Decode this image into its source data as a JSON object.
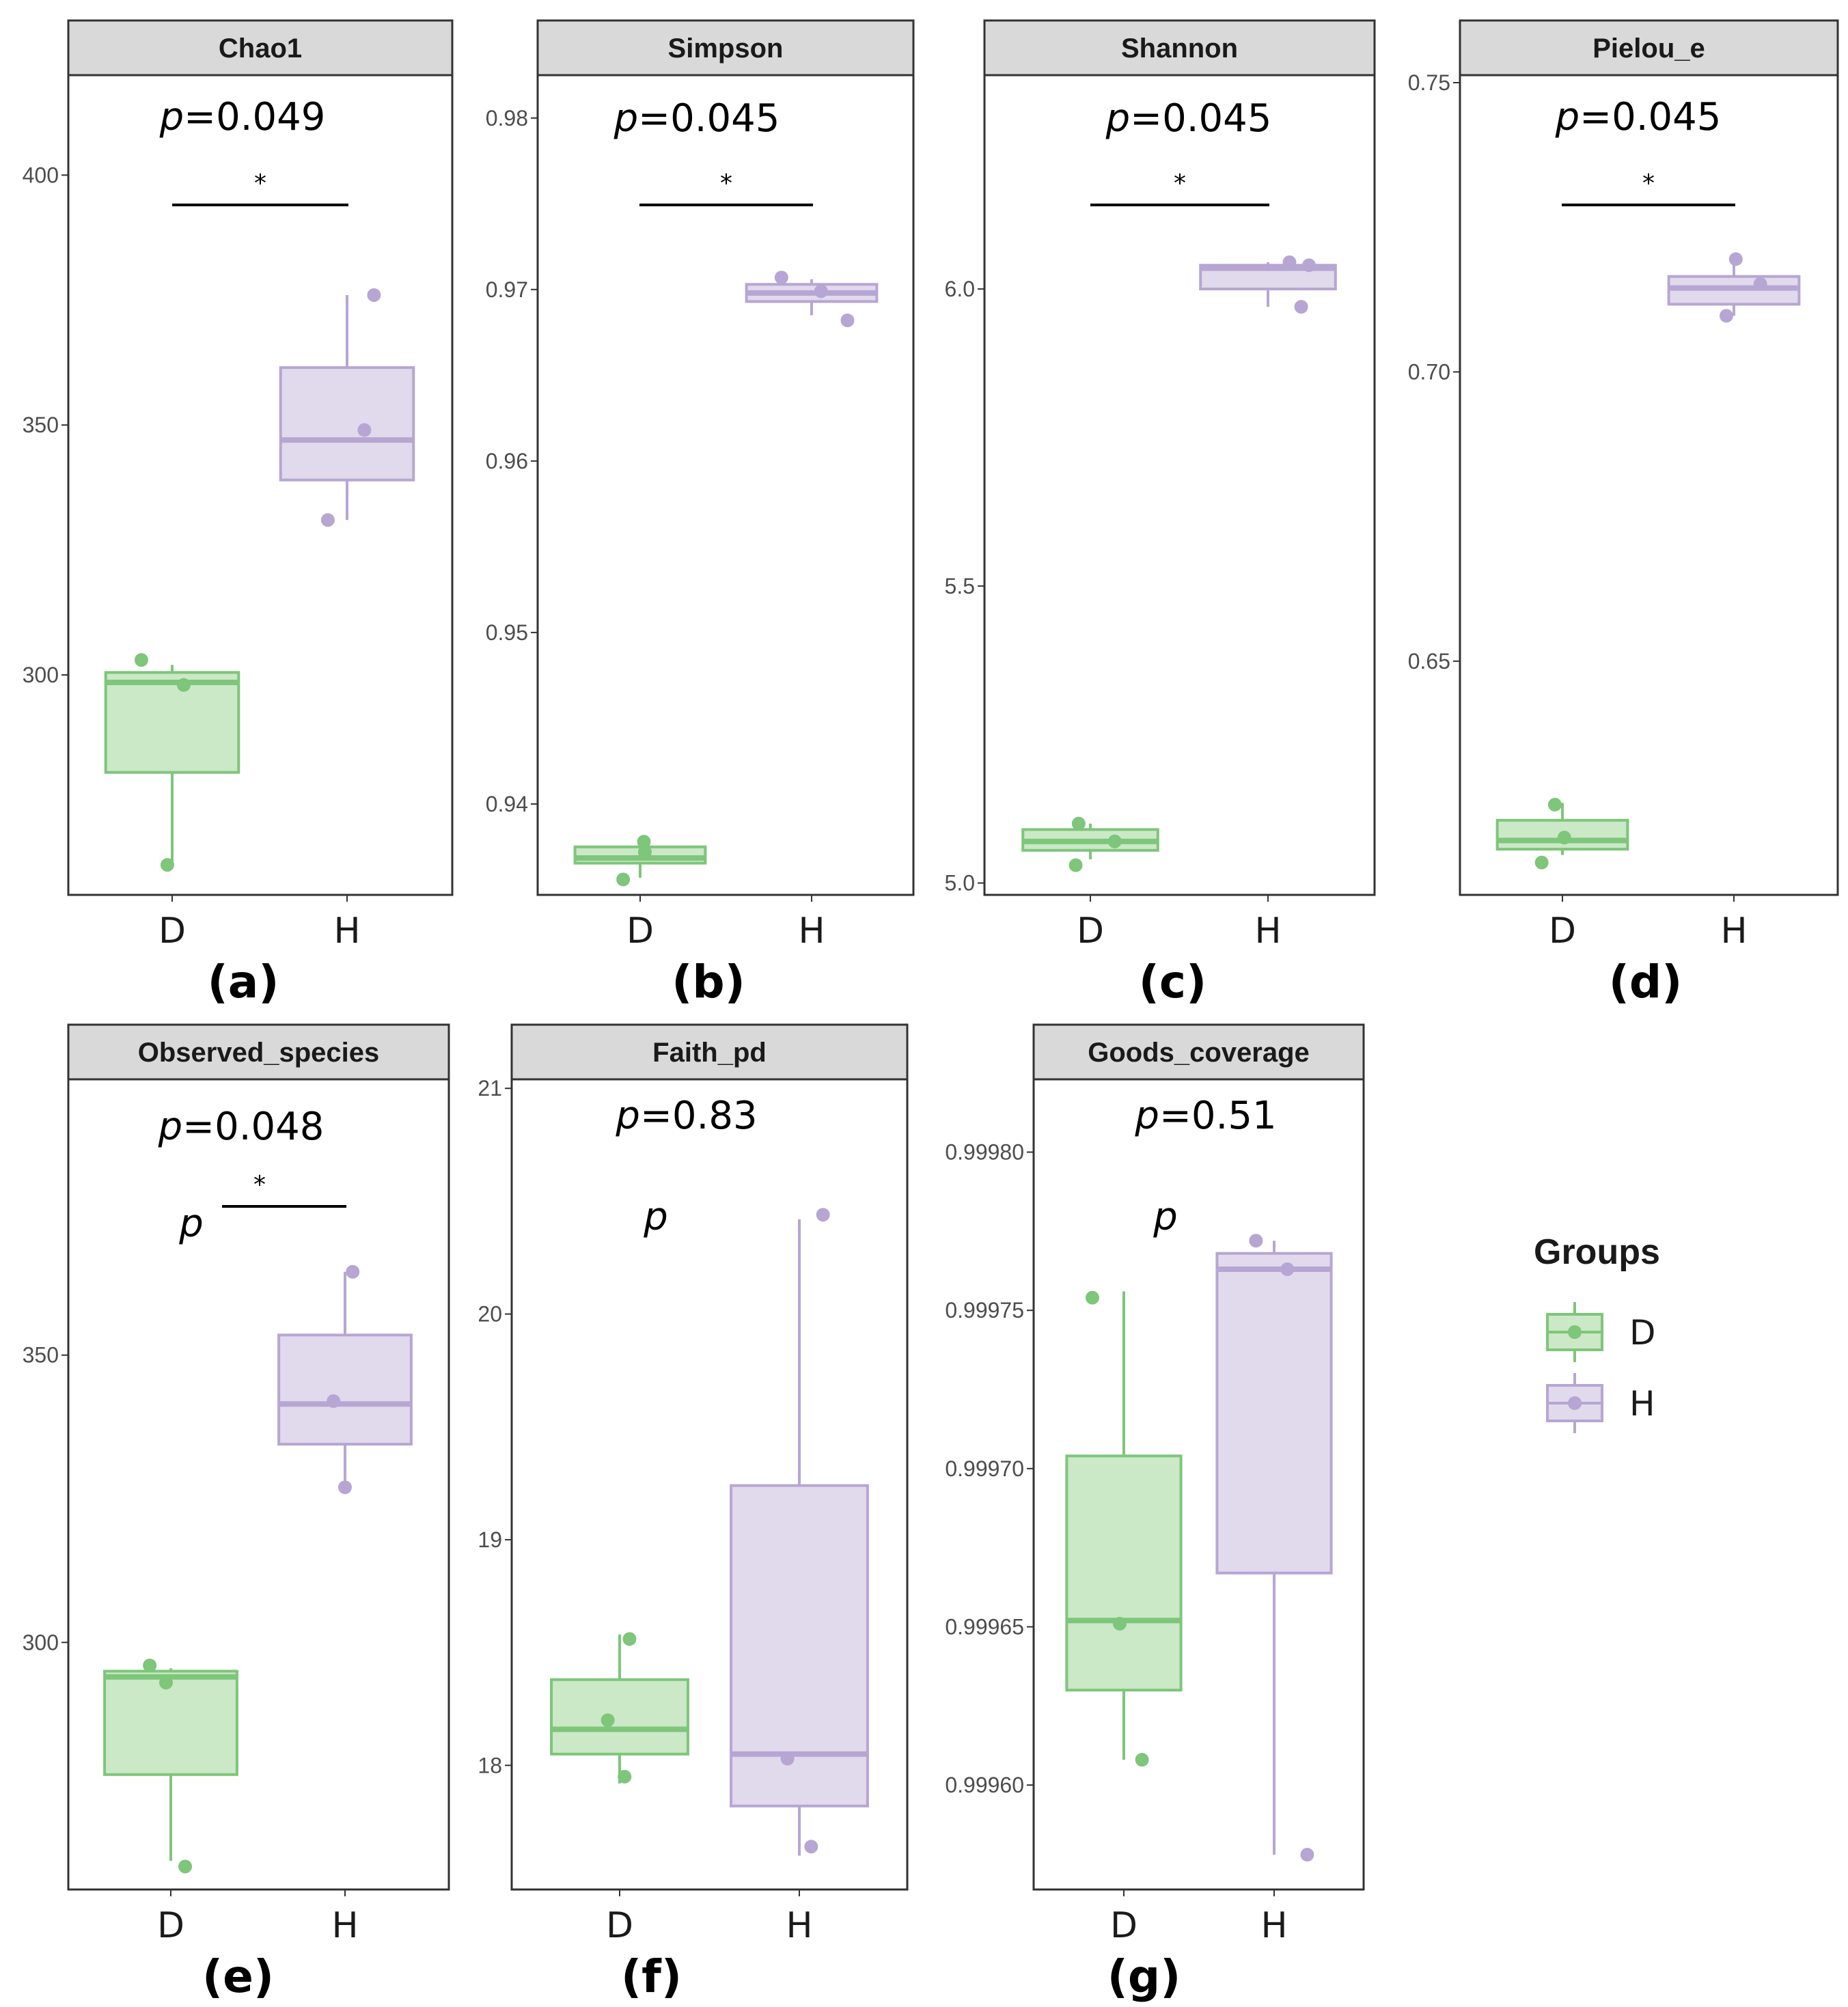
{
  "colors": {
    "D_line": "#7dc67a",
    "D_fill": "#cbe8c7",
    "H_line": "#b7a6d3",
    "H_fill": "#e1d9ec",
    "strip_bg": "#d9d9d9",
    "panel_border": "#333333"
  },
  "legend": {
    "title": "Groups",
    "items": [
      {
        "key": "D",
        "label": "D"
      },
      {
        "key": "H",
        "label": "H"
      }
    ]
  },
  "chart_data": [
    {
      "type": "boxplot",
      "title": "Chao1",
      "panel_label": "(a)",
      "categories": [
        "D",
        "H"
      ],
      "ylim": [
        256,
        420
      ],
      "yticks": [
        300,
        350,
        400
      ],
      "ytick_labels": [
        "300",
        "350",
        "400"
      ],
      "p_text": "p=0.049",
      "significance": "*",
      "extra_p": null,
      "boxes": [
        {
          "group": "D",
          "q1": 280.5,
          "median": 298.5,
          "q3": 300.5,
          "whisker_low": 262,
          "whisker_high": 302
        },
        {
          "group": "H",
          "q1": 339,
          "median": 347,
          "q3": 361.5,
          "whisker_low": 331,
          "whisker_high": 376
        }
      ],
      "points": [
        {
          "group": "D",
          "jitter": -0.32,
          "value": 303
        },
        {
          "group": "D",
          "jitter": 0.12,
          "value": 298
        },
        {
          "group": "D",
          "jitter": -0.05,
          "value": 262
        },
        {
          "group": "H",
          "jitter": -0.2,
          "value": 331
        },
        {
          "group": "H",
          "jitter": 0.18,
          "value": 349
        },
        {
          "group": "H",
          "jitter": 0.28,
          "value": 376
        }
      ]
    },
    {
      "type": "boxplot",
      "title": "Simpson",
      "panel_label": "(b)",
      "categories": [
        "D",
        "H"
      ],
      "ylim": [
        0.9347,
        0.9825
      ],
      "yticks": [
        0.94,
        0.95,
        0.96,
        0.97,
        0.98
      ],
      "ytick_labels": [
        "0.94",
        "0.95",
        "0.96",
        "0.97",
        "0.98"
      ],
      "p_text": "p=0.045",
      "significance": "*",
      "extra_p": null,
      "boxes": [
        {
          "group": "D",
          "q1": 0.93655,
          "median": 0.93685,
          "q3": 0.9375,
          "whisker_low": 0.9357,
          "whisker_high": 0.9378
        },
        {
          "group": "H",
          "q1": 0.9693,
          "median": 0.9698,
          "q3": 0.9703,
          "whisker_low": 0.9685,
          "whisker_high": 0.9706
        }
      ],
      "points": [
        {
          "group": "D",
          "jitter": -0.18,
          "value": 0.9356
        },
        {
          "group": "D",
          "jitter": 0.05,
          "value": 0.9372
        },
        {
          "group": "D",
          "jitter": 0.04,
          "value": 0.9378
        },
        {
          "group": "H",
          "jitter": -0.32,
          "value": 0.9707
        },
        {
          "group": "H",
          "jitter": 0.1,
          "value": 0.9699
        },
        {
          "group": "H",
          "jitter": 0.38,
          "value": 0.9682
        }
      ]
    },
    {
      "type": "boxplot",
      "title": "Shannon",
      "panel_label": "(c)",
      "categories": [
        "D",
        "H"
      ],
      "ylim": [
        4.98,
        6.36
      ],
      "yticks": [
        5.0,
        5.5,
        6.0
      ],
      "ytick_labels": [
        "5.0",
        "5.5",
        "6.0"
      ],
      "p_text": "p=0.045",
      "significance": "*",
      "extra_p": null,
      "boxes": [
        {
          "group": "D",
          "q1": 5.055,
          "median": 5.07,
          "q3": 5.09,
          "whisker_low": 5.04,
          "whisker_high": 5.1
        },
        {
          "group": "H",
          "q1": 6.0,
          "median": 6.035,
          "q3": 6.04,
          "whisker_low": 5.97,
          "whisker_high": 6.045
        }
      ],
      "points": [
        {
          "group": "D",
          "jitter": -0.15,
          "value": 5.03
        },
        {
          "group": "D",
          "jitter": -0.12,
          "value": 5.1
        },
        {
          "group": "D",
          "jitter": 0.25,
          "value": 5.07
        },
        {
          "group": "H",
          "jitter": 0.22,
          "value": 6.045
        },
        {
          "group": "H",
          "jitter": 0.34,
          "value": 5.97
        },
        {
          "group": "H",
          "jitter": 0.42,
          "value": 6.04
        }
      ]
    },
    {
      "type": "boxplot",
      "title": "Pielou_e",
      "panel_label": "(d)",
      "categories": [
        "D",
        "H"
      ],
      "ylim": [
        0.6096,
        0.7513
      ],
      "yticks": [
        0.65,
        0.7,
        0.75
      ],
      "ytick_labels": [
        "0.65",
        "0.70",
        "0.75"
      ],
      "p_text": "p=0.045",
      "significance": "*",
      "extra_p": null,
      "boxes": [
        {
          "group": "D",
          "q1": 0.6175,
          "median": 0.619,
          "q3": 0.6225,
          "whisker_low": 0.6165,
          "whisker_high": 0.6255
        },
        {
          "group": "H",
          "q1": 0.7117,
          "median": 0.7145,
          "q3": 0.7165,
          "whisker_low": 0.7097,
          "whisker_high": 0.7195
        }
      ],
      "points": [
        {
          "group": "D",
          "jitter": -0.22,
          "value": 0.6152
        },
        {
          "group": "D",
          "jitter": -0.08,
          "value": 0.6252
        },
        {
          "group": "D",
          "jitter": 0.02,
          "value": 0.6195
        },
        {
          "group": "H",
          "jitter": -0.08,
          "value": 0.7097
        },
        {
          "group": "H",
          "jitter": 0.02,
          "value": 0.7195
        },
        {
          "group": "H",
          "jitter": 0.28,
          "value": 0.7152
        }
      ]
    },
    {
      "type": "boxplot",
      "title": "Observed_species",
      "panel_label": "(e)",
      "categories": [
        "D",
        "H"
      ],
      "ylim": [
        257,
        398
      ],
      "yticks": [
        300,
        350
      ],
      "ytick_labels": [
        "300",
        "350"
      ],
      "p_text": "p=0.048",
      "significance": "*",
      "extra_p": "p",
      "boxes": [
        {
          "group": "D",
          "q1": 277,
          "median": 294,
          "q3": 295,
          "whisker_low": 262,
          "whisker_high": 295.5
        },
        {
          "group": "H",
          "q1": 334.5,
          "median": 341.5,
          "q3": 353.5,
          "whisker_low": 327,
          "whisker_high": 364.5
        }
      ],
      "points": [
        {
          "group": "D",
          "jitter": -0.22,
          "value": 296
        },
        {
          "group": "D",
          "jitter": -0.05,
          "value": 293
        },
        {
          "group": "D",
          "jitter": 0.15,
          "value": 261
        },
        {
          "group": "H",
          "jitter": -0.12,
          "value": 342
        },
        {
          "group": "H",
          "jitter": 0.0,
          "value": 327
        },
        {
          "group": "H",
          "jitter": 0.08,
          "value": 364.5
        }
      ]
    },
    {
      "type": "boxplot",
      "title": "Faith_pd",
      "panel_label": "(f)",
      "categories": [
        "D",
        "H"
      ],
      "ylim": [
        17.45,
        21.04
      ],
      "yticks": [
        18,
        19,
        20,
        21
      ],
      "ytick_labels": [
        "18",
        "19",
        "20",
        "21"
      ],
      "p_text": "p=0.83",
      "significance": "",
      "extra_p": "p",
      "boxes": [
        {
          "group": "D",
          "q1": 18.05,
          "median": 18.16,
          "q3": 18.38,
          "whisker_low": 17.92,
          "whisker_high": 18.58
        },
        {
          "group": "H",
          "q1": 17.82,
          "median": 18.05,
          "q3": 19.24,
          "whisker_low": 17.6,
          "whisker_high": 20.42
        }
      ],
      "points": [
        {
          "group": "D",
          "jitter": -0.12,
          "value": 18.2
        },
        {
          "group": "D",
          "jitter": 0.05,
          "value": 17.95
        },
        {
          "group": "D",
          "jitter": 0.1,
          "value": 18.56
        },
        {
          "group": "H",
          "jitter": -0.12,
          "value": 18.03
        },
        {
          "group": "H",
          "jitter": 0.12,
          "value": 17.64
        },
        {
          "group": "H",
          "jitter": 0.24,
          "value": 20.44
        }
      ]
    },
    {
      "type": "boxplot",
      "title": "Goods_coverage",
      "panel_label": "(g)",
      "categories": [
        "D",
        "H"
      ],
      "ylim": [
        0.999567,
        0.999823
      ],
      "yticks": [
        0.9996,
        0.99965,
        0.9997,
        0.99975,
        0.9998
      ],
      "ytick_labels": [
        "0.99960",
        "0.99965",
        "0.99970",
        "0.99975",
        "0.99980"
      ],
      "p_text": "p=0.51",
      "significance": "",
      "extra_p": "p",
      "boxes": [
        {
          "group": "D",
          "q1": 0.99963,
          "median": 0.999652,
          "q3": 0.999704,
          "whisker_low": 0.999608,
          "whisker_high": 0.999756
        },
        {
          "group": "H",
          "q1": 0.999667,
          "median": 0.999763,
          "q3": 0.999768,
          "whisker_low": 0.999578,
          "whisker_high": 0.999772
        }
      ],
      "points": [
        {
          "group": "D",
          "jitter": -0.38,
          "value": 0.999754
        },
        {
          "group": "D",
          "jitter": -0.05,
          "value": 0.999651
        },
        {
          "group": "D",
          "jitter": 0.22,
          "value": 0.999608
        },
        {
          "group": "H",
          "jitter": -0.22,
          "value": 0.999772
        },
        {
          "group": "H",
          "jitter": 0.16,
          "value": 0.999763
        },
        {
          "group": "H",
          "jitter": 0.4,
          "value": 0.999578
        }
      ]
    }
  ]
}
